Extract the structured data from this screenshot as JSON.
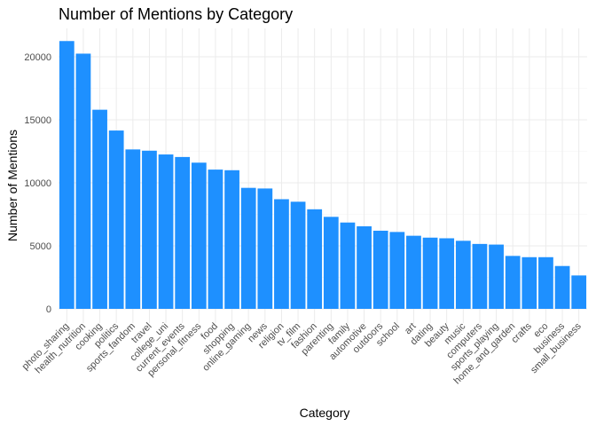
{
  "chart_data": {
    "type": "bar",
    "title": "Number of Mentions by Category",
    "xlabel": "Category",
    "ylabel": "Number of Mentions",
    "bar_color": "#1E90FF",
    "ylim": [
      0,
      22500
    ],
    "yticks": [
      0,
      5000,
      10000,
      15000,
      20000
    ],
    "ytick_labels": [
      "0",
      "5000",
      "10000",
      "15000",
      "20000"
    ],
    "grid": true,
    "legend": "none",
    "categories": [
      "photo_sharing",
      "health_nutrition",
      "cooking",
      "politics",
      "sports_fandom",
      "travel",
      "college_uni",
      "current_events",
      "personal_fitness",
      "food",
      "shopping",
      "online_gaming",
      "news",
      "religion",
      "tv_film",
      "fashion",
      "parenting",
      "family",
      "automotive",
      "outdoors",
      "school",
      "art",
      "dating",
      "beauty",
      "music",
      "computers",
      "sports_playing",
      "home_and_garden",
      "crafts",
      "eco",
      "business",
      "small_business"
    ],
    "values": [
      21250,
      20250,
      15800,
      14150,
      12650,
      12550,
      12250,
      12050,
      11600,
      11050,
      11000,
      9600,
      9550,
      8700,
      8500,
      7900,
      7300,
      6850,
      6550,
      6200,
      6100,
      5800,
      5650,
      5600,
      5400,
      5150,
      5100,
      4200,
      4100,
      4100,
      3400,
      2650
    ]
  }
}
